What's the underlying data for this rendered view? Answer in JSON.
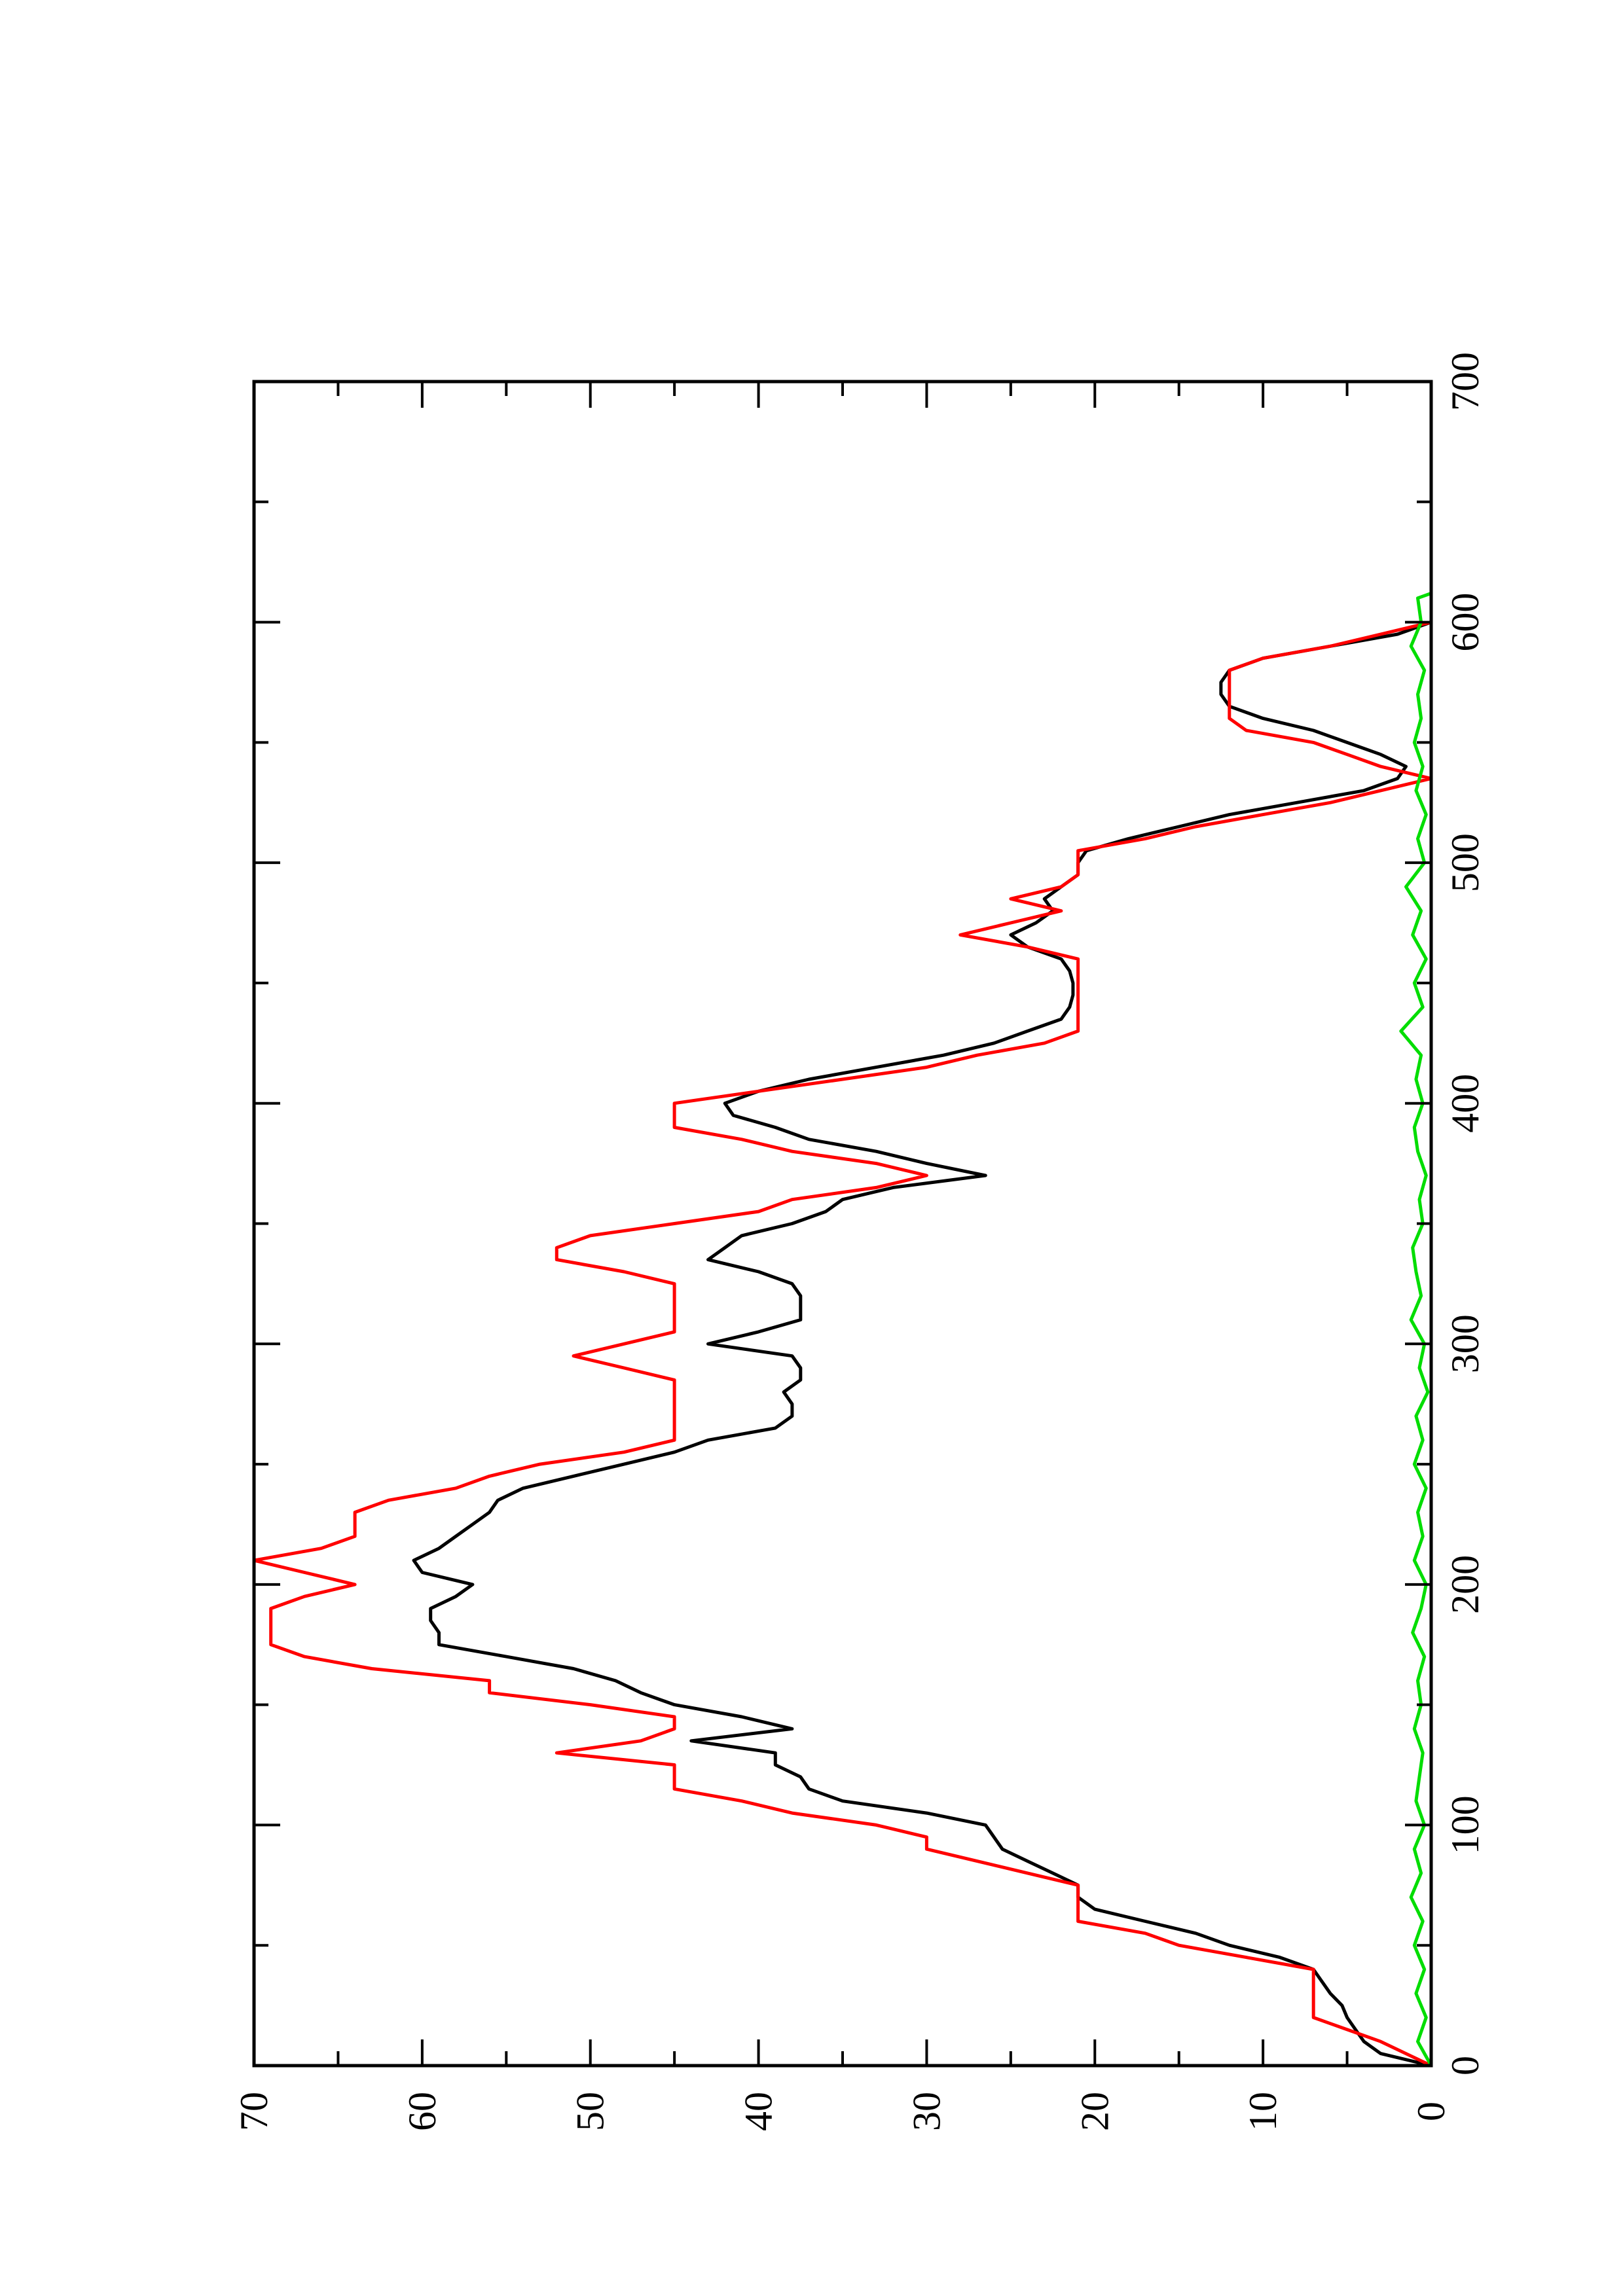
{
  "chart_data": {
    "type": "line",
    "orientation": "rotated-90-ccw",
    "title": "",
    "xlabel": "",
    "ylabel": "",
    "xlim": [
      0,
      700
    ],
    "ylim": [
      0,
      70
    ],
    "x_ticks": [
      "0",
      "100",
      "200",
      "300",
      "400",
      "500",
      "600",
      "700"
    ],
    "y_ticks": [
      "0",
      "10",
      "20",
      "30",
      "40",
      "50",
      "60",
      "70"
    ],
    "grid": false,
    "legend": "none",
    "series": [
      {
        "color": "#000000",
        "points": [
          [
            0,
            0
          ],
          [
            5,
            3
          ],
          [
            10,
            4
          ],
          [
            15,
            4.5
          ],
          [
            20,
            5
          ],
          [
            25,
            5.3
          ],
          [
            30,
            6
          ],
          [
            35,
            6.5
          ],
          [
            40,
            7
          ],
          [
            45,
            9
          ],
          [
            50,
            12
          ],
          [
            55,
            14
          ],
          [
            60,
            17
          ],
          [
            65,
            20
          ],
          [
            70,
            21
          ],
          [
            75,
            21
          ],
          [
            80,
            22.5
          ],
          [
            85,
            24
          ],
          [
            90,
            25.5
          ],
          [
            95,
            26
          ],
          [
            100,
            26.5
          ],
          [
            105,
            30
          ],
          [
            110,
            35
          ],
          [
            115,
            37
          ],
          [
            120,
            37.5
          ],
          [
            125,
            39
          ],
          [
            130,
            39
          ],
          [
            135,
            44
          ],
          [
            140,
            38
          ],
          [
            145,
            41
          ],
          [
            150,
            45
          ],
          [
            155,
            47
          ],
          [
            160,
            48.5
          ],
          [
            165,
            51
          ],
          [
            170,
            55
          ],
          [
            175,
            59
          ],
          [
            180,
            59
          ],
          [
            185,
            59.5
          ],
          [
            190,
            59.5
          ],
          [
            195,
            58
          ],
          [
            200,
            57
          ],
          [
            205,
            60
          ],
          [
            210,
            60.5
          ],
          [
            215,
            59
          ],
          [
            220,
            58
          ],
          [
            225,
            57
          ],
          [
            230,
            56
          ],
          [
            235,
            55.5
          ],
          [
            240,
            54
          ],
          [
            245,
            51
          ],
          [
            250,
            48
          ],
          [
            255,
            45
          ],
          [
            260,
            43
          ],
          [
            265,
            39
          ],
          [
            270,
            38
          ],
          [
            275,
            38
          ],
          [
            280,
            38.5
          ],
          [
            285,
            37.5
          ],
          [
            290,
            37.5
          ],
          [
            295,
            38
          ],
          [
            300,
            43
          ],
          [
            305,
            40
          ],
          [
            310,
            37.5
          ],
          [
            315,
            37.5
          ],
          [
            320,
            37.5
          ],
          [
            325,
            38
          ],
          [
            330,
            40
          ],
          [
            335,
            43
          ],
          [
            340,
            42
          ],
          [
            345,
            41
          ],
          [
            350,
            38
          ],
          [
            355,
            36
          ],
          [
            360,
            35
          ],
          [
            365,
            32
          ],
          [
            370,
            26.5
          ],
          [
            375,
            30
          ],
          [
            380,
            33
          ],
          [
            385,
            37
          ],
          [
            390,
            39
          ],
          [
            395,
            41.5
          ],
          [
            400,
            42
          ],
          [
            405,
            40
          ],
          [
            410,
            37
          ],
          [
            415,
            33
          ],
          [
            420,
            29
          ],
          [
            425,
            26
          ],
          [
            430,
            24
          ],
          [
            435,
            22
          ],
          [
            440,
            21.5
          ],
          [
            445,
            21.3
          ],
          [
            450,
            21.3
          ],
          [
            455,
            21.5
          ],
          [
            460,
            22
          ],
          [
            465,
            24
          ],
          [
            470,
            25
          ],
          [
            475,
            23.5
          ],
          [
            480,
            22.5
          ],
          [
            485,
            23
          ],
          [
            490,
            22
          ],
          [
            495,
            21
          ],
          [
            500,
            21
          ],
          [
            505,
            20.5
          ],
          [
            510,
            18
          ],
          [
            515,
            15
          ],
          [
            520,
            12
          ],
          [
            525,
            8
          ],
          [
            530,
            4
          ],
          [
            535,
            2
          ],
          [
            540,
            1.5
          ],
          [
            545,
            3
          ],
          [
            550,
            5
          ],
          [
            555,
            7
          ],
          [
            560,
            10
          ],
          [
            565,
            12
          ],
          [
            570,
            12.5
          ],
          [
            575,
            12.5
          ],
          [
            580,
            12
          ],
          [
            585,
            10
          ],
          [
            590,
            6
          ],
          [
            595,
            2
          ],
          [
            600,
            0
          ]
        ]
      },
      {
        "color": "#ff0000",
        "points": [
          [
            0,
            0
          ],
          [
            10,
            3
          ],
          [
            15,
            5
          ],
          [
            20,
            7
          ],
          [
            25,
            7
          ],
          [
            30,
            7
          ],
          [
            35,
            7
          ],
          [
            40,
            7
          ],
          [
            45,
            11
          ],
          [
            50,
            15
          ],
          [
            55,
            17
          ],
          [
            60,
            21
          ],
          [
            65,
            21
          ],
          [
            70,
            21
          ],
          [
            75,
            21
          ],
          [
            80,
            24
          ],
          [
            85,
            27
          ],
          [
            90,
            30
          ],
          [
            95,
            30
          ],
          [
            100,
            33
          ],
          [
            105,
            38
          ],
          [
            110,
            41
          ],
          [
            115,
            45
          ],
          [
            120,
            45
          ],
          [
            125,
            45
          ],
          [
            130,
            52
          ],
          [
            135,
            47
          ],
          [
            140,
            45
          ],
          [
            145,
            45
          ],
          [
            150,
            50
          ],
          [
            155,
            56
          ],
          [
            160,
            56
          ],
          [
            165,
            63
          ],
          [
            170,
            67
          ],
          [
            175,
            69
          ],
          [
            180,
            69
          ],
          [
            185,
            69
          ],
          [
            190,
            69
          ],
          [
            195,
            67
          ],
          [
            200,
            64
          ],
          [
            205,
            67
          ],
          [
            210,
            70
          ],
          [
            215,
            66
          ],
          [
            220,
            64
          ],
          [
            225,
            64
          ],
          [
            230,
            64
          ],
          [
            235,
            62
          ],
          [
            240,
            58
          ],
          [
            245,
            56
          ],
          [
            250,
            53
          ],
          [
            255,
            48
          ],
          [
            260,
            45
          ],
          [
            265,
            45
          ],
          [
            270,
            45
          ],
          [
            275,
            45
          ],
          [
            280,
            45
          ],
          [
            285,
            45
          ],
          [
            290,
            48
          ],
          [
            295,
            51
          ],
          [
            300,
            48
          ],
          [
            305,
            45
          ],
          [
            310,
            45
          ],
          [
            315,
            45
          ],
          [
            320,
            45
          ],
          [
            325,
            45
          ],
          [
            330,
            48
          ],
          [
            335,
            52
          ],
          [
            340,
            52
          ],
          [
            345,
            50
          ],
          [
            350,
            45
          ],
          [
            355,
            40
          ],
          [
            360,
            38
          ],
          [
            365,
            33
          ],
          [
            370,
            30
          ],
          [
            375,
            33
          ],
          [
            380,
            38
          ],
          [
            385,
            41
          ],
          [
            390,
            45
          ],
          [
            395,
            45
          ],
          [
            400,
            45
          ],
          [
            405,
            40
          ],
          [
            410,
            35
          ],
          [
            415,
            30
          ],
          [
            420,
            27
          ],
          [
            425,
            23
          ],
          [
            430,
            21
          ],
          [
            435,
            21
          ],
          [
            440,
            21
          ],
          [
            445,
            21
          ],
          [
            450,
            21
          ],
          [
            455,
            21
          ],
          [
            460,
            21
          ],
          [
            465,
            24
          ],
          [
            470,
            28
          ],
          [
            475,
            25
          ],
          [
            480,
            22
          ],
          [
            485,
            25
          ],
          [
            490,
            22
          ],
          [
            495,
            21
          ],
          [
            500,
            21
          ],
          [
            505,
            21
          ],
          [
            510,
            17
          ],
          [
            515,
            14
          ],
          [
            520,
            10
          ],
          [
            525,
            6
          ],
          [
            530,
            3
          ],
          [
            535,
            0
          ],
          [
            540,
            3
          ],
          [
            545,
            5
          ],
          [
            550,
            7
          ],
          [
            555,
            11
          ],
          [
            560,
            12
          ],
          [
            565,
            12
          ],
          [
            570,
            12
          ],
          [
            575,
            12
          ],
          [
            580,
            12
          ],
          [
            585,
            10
          ],
          [
            590,
            6
          ],
          [
            595,
            3
          ],
          [
            600,
            0
          ]
        ]
      },
      {
        "color": "#00dd00",
        "points": [
          [
            0,
            0
          ],
          [
            10,
            0.8
          ],
          [
            20,
            0.3
          ],
          [
            30,
            0.9
          ],
          [
            40,
            0.4
          ],
          [
            50,
            1
          ],
          [
            60,
            0.5
          ],
          [
            70,
            1.2
          ],
          [
            80,
            0.6
          ],
          [
            90,
            1
          ],
          [
            100,
            0.4
          ],
          [
            110,
            0.9
          ],
          [
            120,
            0.7
          ],
          [
            130,
            0.5
          ],
          [
            140,
            1
          ],
          [
            150,
            0.6
          ],
          [
            160,
            0.8
          ],
          [
            170,
            0.4
          ],
          [
            180,
            1.1
          ],
          [
            190,
            0.6
          ],
          [
            200,
            0.3
          ],
          [
            210,
            1
          ],
          [
            220,
            0.5
          ],
          [
            230,
            0.8
          ],
          [
            240,
            0.3
          ],
          [
            250,
            1
          ],
          [
            260,
            0.5
          ],
          [
            270,
            0.9
          ],
          [
            280,
            0.2
          ],
          [
            290,
            0.7
          ],
          [
            300,
            0.4
          ],
          [
            310,
            1.2
          ],
          [
            320,
            0.6
          ],
          [
            330,
            0.9
          ],
          [
            340,
            1.1
          ],
          [
            350,
            0.5
          ],
          [
            360,
            0.7
          ],
          [
            370,
            0.3
          ],
          [
            380,
            0.8
          ],
          [
            390,
            1
          ],
          [
            400,
            0.5
          ],
          [
            410,
            0.9
          ],
          [
            420,
            0.6
          ],
          [
            430,
            1.8
          ],
          [
            440,
            0.5
          ],
          [
            450,
            1
          ],
          [
            460,
            0.3
          ],
          [
            470,
            1.1
          ],
          [
            480,
            0.6
          ],
          [
            490,
            1.5
          ],
          [
            500,
            0.4
          ],
          [
            510,
            0.8
          ],
          [
            520,
            0.3
          ],
          [
            530,
            0.9
          ],
          [
            540,
            0.5
          ],
          [
            550,
            1
          ],
          [
            560,
            0.6
          ],
          [
            570,
            0.8
          ],
          [
            580,
            0.4
          ],
          [
            590,
            1.2
          ],
          [
            600,
            0.6
          ],
          [
            610,
            0.8
          ],
          [
            612,
            0
          ]
        ]
      }
    ]
  }
}
